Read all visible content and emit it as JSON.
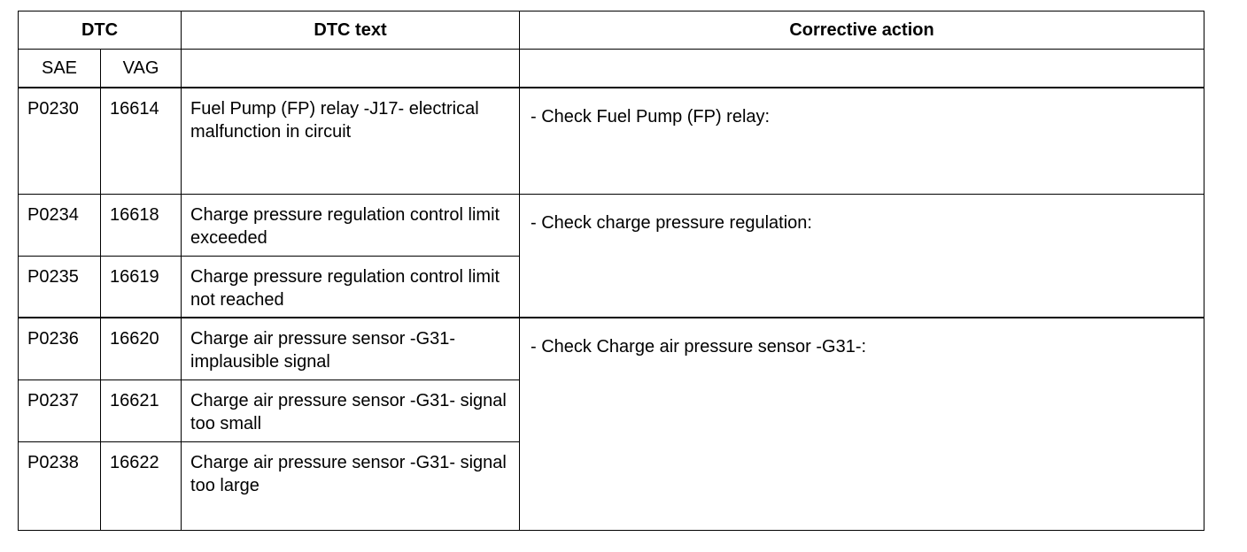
{
  "headers": {
    "dtc": "DTC",
    "dtc_text": "DTC text",
    "corrective": "Corrective action",
    "sae": "SAE",
    "vag": "VAG"
  },
  "rows": [
    {
      "sae": "P0230",
      "vag": "16614",
      "text": "Fuel Pump (FP) relay -J17- electrical malfunction in circuit"
    },
    {
      "sae": "P0234",
      "vag": "16618",
      "text": "Charge pressure regulation control limit exceeded"
    },
    {
      "sae": "P0235",
      "vag": "16619",
      "text": "Charge pressure regulation control limit not reached"
    },
    {
      "sae": "P0236",
      "vag": "16620",
      "text": "Charge air pressure sensor -G31- implausible signal"
    },
    {
      "sae": "P0237",
      "vag": "16621",
      "text": "Charge air pressure sensor -G31- signal too small"
    },
    {
      "sae": "P0238",
      "vag": "16622",
      "text": "Charge air pressure sensor -G31- signal too large"
    }
  ],
  "actions": [
    "- Check Fuel Pump (FP) relay:",
    "- Check charge pressure regulation:",
    "- Check Charge air pressure sensor -G31-:"
  ]
}
